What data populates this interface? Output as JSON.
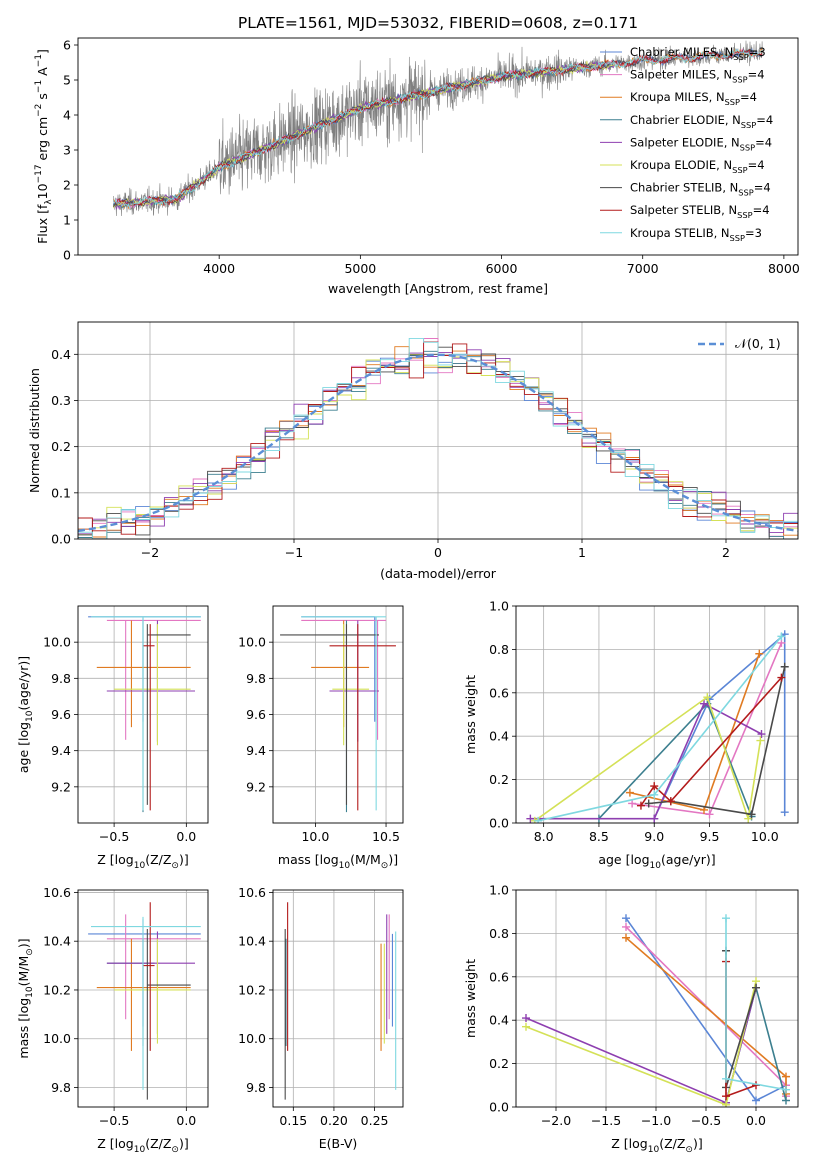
{
  "title": "PLATE=1561, MJD=53032, FIBERID=0608, z=0.171",
  "colors": {
    "Chabrier MILES": "#5b86d6",
    "Salpeter MILES": "#e377c2",
    "Kroupa MILES": "#e07b22",
    "Chabrier ELODIE": "#3c7f8f",
    "Salpeter ELODIE": "#8e3fb0",
    "Kroupa ELODIE": "#d4e157",
    "Chabrier STELIB": "#4a4a4a",
    "Salpeter STELIB": "#b31b1b",
    "Kroupa STELIB": "#7fd8e0",
    "data": "#808080",
    "gaussian": "#5b8fd6"
  },
  "chart_data": [
    {
      "type": "line",
      "panel": "spectrum",
      "xlabel": "wavelength [Angstrom, rest frame]",
      "ylabel": "Flux [f",
      "ylabel_sub": "λ",
      "ylabel_rest": "10",
      "ylabel_sup": "−17",
      "ylabel_tail": " erg cm",
      "ylabel_sup2": "−2",
      "ylabel_tail2": " s",
      "ylabel_sup3": "−1",
      "ylabel_tail3": " A",
      "ylabel_sup4": "−1",
      "ylabel_end": "]",
      "xlim": [
        3000,
        8100
      ],
      "ylim": [
        0,
        6.2
      ],
      "xticks": [
        4000,
        5000,
        6000,
        7000,
        8000
      ],
      "yticks": [
        0,
        1,
        2,
        3,
        4,
        5,
        6
      ],
      "data_range": [
        3250,
        7850
      ],
      "model_range": [
        3250,
        6800
      ],
      "legend": [
        {
          "name": "Chabrier MILES",
          "nssp": "3"
        },
        {
          "name": "Salpeter MILES",
          "nssp": "4"
        },
        {
          "name": "Kroupa MILES",
          "nssp": "4"
        },
        {
          "name": "Chabrier ELODIE",
          "nssp": "4"
        },
        {
          "name": "Salpeter ELODIE",
          "nssp": "4"
        },
        {
          "name": "Kroupa ELODIE",
          "nssp": "4"
        },
        {
          "name": "Chabrier STELIB",
          "nssp": "4"
        },
        {
          "name": "Salpeter STELIB",
          "nssp": "4"
        },
        {
          "name": "Kroupa STELIB",
          "nssp": "3"
        }
      ],
      "legend_prefix": "N",
      "legend_sub": "SSP"
    },
    {
      "type": "histogram",
      "panel": "residuals",
      "xlabel": "(data-model)/error",
      "ylabel": "Normed distribution",
      "xlim": [
        -2.5,
        2.5
      ],
      "ylim": [
        0,
        0.47
      ],
      "xticks": [
        -2,
        -1,
        0,
        1,
        2
      ],
      "yticks": [
        0.0,
        0.1,
        0.2,
        0.3,
        0.4
      ],
      "bin_width": 0.1,
      "legend": "𝒩(0, 1)"
    },
    {
      "type": "scatter",
      "panel": "age-vs-Z",
      "xlabel": "Z [log",
      "xlabel_sub": "10",
      "xlabel_tail": "(Z/Z",
      "xlabel_sub2": "⊙",
      "xlabel_end": ")]",
      "ylabel": "age  [log",
      "ylabel_sub": "10",
      "ylabel_tail": "(age/yr)]",
      "xlim": [
        -0.75,
        0.15
      ],
      "ylim": [
        9.0,
        10.2
      ],
      "xticks": [
        -0.5,
        0.0
      ],
      "yticks": [
        9.2,
        9.4,
        9.6,
        9.8,
        10.0
      ]
    },
    {
      "type": "scatter",
      "panel": "age-vs-mass",
      "xlabel": "mass [log",
      "xlabel_sub": "10",
      "xlabel_tail": "(M/M",
      "xlabel_sub2": "⊙",
      "xlabel_end": ")]",
      "xlim": [
        9.7,
        10.62
      ],
      "ylim": [
        9.0,
        10.2
      ],
      "xticks": [
        10.0,
        10.5
      ],
      "yticks": [
        9.2,
        9.4,
        9.6,
        9.8,
        10.0
      ]
    },
    {
      "type": "line",
      "panel": "weight-vs-age",
      "xlabel": "age  [log",
      "xlabel_sub": "10",
      "xlabel_tail": "(age/yr)]",
      "ylabel": "mass weight",
      "xlim": [
        7.75,
        10.3
      ],
      "ylim": [
        0,
        1.0
      ],
      "xticks": [
        8.0,
        8.5,
        9.0,
        9.5,
        10.0
      ],
      "yticks": [
        0.0,
        0.2,
        0.4,
        0.6,
        0.8,
        1.0
      ],
      "series": [
        {
          "name": "Chabrier MILES",
          "x": [
            9.0,
            9.5,
            10.18,
            10.18
          ],
          "y": [
            0.02,
            0.57,
            0.87,
            0.05
          ]
        },
        {
          "name": "Salpeter MILES",
          "x": [
            8.8,
            9.5,
            10.15
          ],
          "y": [
            0.09,
            0.04,
            0.83
          ]
        },
        {
          "name": "Kroupa MILES",
          "x": [
            8.78,
            9.45,
            9.95
          ],
          "y": [
            0.14,
            0.06,
            0.78
          ]
        },
        {
          "name": "Chabrier ELODIE",
          "x": [
            8.5,
            9.48,
            9.88
          ],
          "y": [
            0.02,
            0.55,
            0.03
          ]
        },
        {
          "name": "Salpeter ELODIE",
          "x": [
            7.88,
            9.0,
            9.45,
            9.97
          ],
          "y": [
            0.02,
            0.02,
            0.55,
            0.41
          ]
        },
        {
          "name": "Kroupa ELODIE",
          "x": [
            7.92,
            9.48,
            9.85,
            9.96
          ],
          "y": [
            0.01,
            0.58,
            0.02,
            0.38
          ]
        },
        {
          "name": "Chabrier STELIB",
          "x": [
            8.95,
            9.15,
            9.88,
            10.18
          ],
          "y": [
            0.09,
            0.1,
            0.04,
            0.72
          ]
        },
        {
          "name": "Salpeter STELIB",
          "x": [
            8.88,
            9.0,
            9.15,
            10.15
          ],
          "y": [
            0.08,
            0.17,
            0.1,
            0.67
          ]
        },
        {
          "name": "Kroupa STELIB",
          "x": [
            7.95,
            9.0,
            10.15
          ],
          "y": [
            0.01,
            0.13,
            0.86
          ]
        }
      ]
    },
    {
      "type": "scatter",
      "panel": "mass-vs-Z",
      "xlabel": "Z [log",
      "xlabel_sub": "10",
      "xlabel_tail": "(Z/Z",
      "xlabel_sub2": "⊙",
      "xlabel_end": ")]",
      "ylabel": "mass [log",
      "ylabel_sub": "10",
      "ylabel_tail": "(M/M",
      "ylabel_sub2": "⊙",
      "ylabel_end": ")]",
      "xlim": [
        -0.75,
        0.15
      ],
      "ylim": [
        9.72,
        10.61
      ],
      "xticks": [
        -0.5,
        0.0
      ],
      "yticks": [
        9.8,
        10.0,
        10.2,
        10.4,
        10.6
      ]
    },
    {
      "type": "scatter",
      "panel": "mass-vs-EBV",
      "xlabel": "E(B-V)",
      "xlim": [
        0.125,
        0.285
      ],
      "ylim": [
        9.72,
        10.61
      ],
      "xticks": [
        0.15,
        0.2,
        0.25
      ],
      "yticks": [
        9.8,
        10.0,
        10.2,
        10.4,
        10.6
      ]
    },
    {
      "type": "line",
      "panel": "weight-vs-Z",
      "xlabel": "Z [log",
      "xlabel_sub": "10",
      "xlabel_tail": "(Z/Z",
      "xlabel_sub2": "⊙",
      "xlabel_end": ")]",
      "ylabel": "mass weight",
      "xlim": [
        -2.4,
        0.42
      ],
      "ylim": [
        0,
        1.0
      ],
      "xticks": [
        -2.0,
        -1.5,
        -1.0,
        -0.5,
        0.0
      ],
      "yticks": [
        0.0,
        0.2,
        0.4,
        0.6,
        0.8,
        1.0
      ],
      "series": [
        {
          "name": "Chabrier MILES",
          "x": [
            -1.3,
            0.0,
            0.3
          ],
          "y": [
            0.87,
            0.03,
            0.1
          ]
        },
        {
          "name": "Salpeter MILES",
          "x": [
            -1.3,
            0.3,
            0.3
          ],
          "y": [
            0.83,
            0.1,
            0.05
          ]
        },
        {
          "name": "Kroupa MILES",
          "x": [
            -1.3,
            0.3,
            0.3
          ],
          "y": [
            0.78,
            0.14,
            0.06
          ]
        },
        {
          "name": "Chabrier ELODIE",
          "x": [
            -0.3,
            0.0,
            0.3
          ],
          "y": [
            0.02,
            0.55,
            0.03
          ]
        },
        {
          "name": "Salpeter ELODIE",
          "x": [
            -2.3,
            -0.3,
            0.0
          ],
          "y": [
            0.41,
            0.02,
            0.55
          ]
        },
        {
          "name": "Kroupa ELODIE",
          "x": [
            -2.3,
            -0.3,
            0.0
          ],
          "y": [
            0.37,
            0.01,
            0.58
          ]
        },
        {
          "name": "Chabrier STELIB",
          "x": [
            -0.3,
            -0.3,
            0.0
          ],
          "y": [
            0.72,
            0.09,
            0.55
          ]
        },
        {
          "name": "Salpeter STELIB",
          "x": [
            -0.3,
            -0.3,
            0.0
          ],
          "y": [
            0.67,
            0.05,
            0.1
          ]
        },
        {
          "name": "Kroupa STELIB",
          "x": [
            -0.3,
            -0.3,
            0.3
          ],
          "y": [
            0.87,
            0.13,
            0.08
          ]
        }
      ]
    }
  ],
  "errorbars": {
    "age_Z": [
      {
        "name": "Chabrier MILES",
        "x": -0.3,
        "xlo": -0.68,
        "xhi": 0.1,
        "y": 10.14,
        "ylo": 9.56,
        "yhi": 10.14
      },
      {
        "name": "Salpeter MILES",
        "x": -0.42,
        "xlo": -0.55,
        "xhi": 0.1,
        "y": 10.12,
        "ylo": 9.46,
        "yhi": 10.12
      },
      {
        "name": "Kroupa MILES",
        "x": -0.38,
        "xlo": -0.62,
        "xhi": 0.03,
        "y": 9.86,
        "ylo": 9.53,
        "yhi": 10.12
      },
      {
        "name": "Chabrier ELODIE",
        "x": -0.3,
        "xlo": -0.55,
        "xhi": -0.22,
        "y": 9.73,
        "ylo": 9.06,
        "yhi": 10.12
      },
      {
        "name": "Salpeter ELODIE",
        "x": -0.2,
        "xlo": -0.55,
        "xhi": 0.06,
        "y": 9.73,
        "ylo": 9.45,
        "yhi": 10.12
      },
      {
        "name": "Kroupa ELODIE",
        "x": -0.2,
        "xlo": -0.5,
        "xhi": 0.03,
        "y": 9.74,
        "ylo": 9.43,
        "yhi": 10.1
      },
      {
        "name": "Chabrier STELIB",
        "x": -0.27,
        "xlo": -0.27,
        "xhi": 0.03,
        "y": 10.04,
        "ylo": 9.1,
        "yhi": 10.1
      },
      {
        "name": "Salpeter STELIB",
        "x": -0.25,
        "xlo": -0.3,
        "xhi": -0.22,
        "y": 9.98,
        "ylo": 9.07,
        "yhi": 10.1
      },
      {
        "name": "Kroupa STELIB",
        "x": -0.3,
        "xlo": -0.66,
        "xhi": 0.1,
        "y": 10.14,
        "ylo": 9.07,
        "yhi": 10.14
      }
    ],
    "age_mass": [
      {
        "name": "Chabrier MILES",
        "x": 10.42,
        "xlo": 9.9,
        "xhi": 10.42,
        "y": 10.14,
        "ylo": 9.56,
        "yhi": 10.14
      },
      {
        "name": "Salpeter MILES",
        "x": 10.44,
        "xlo": 9.9,
        "xhi": 10.5,
        "y": 10.12,
        "ylo": 9.46,
        "yhi": 10.12
      },
      {
        "name": "Kroupa MILES",
        "x": 10.2,
        "xlo": 9.97,
        "xhi": 10.38,
        "y": 9.86,
        "ylo": 9.53,
        "yhi": 10.12
      },
      {
        "name": "Chabrier ELODIE",
        "x": 10.22,
        "xlo": 10.1,
        "xhi": 10.45,
        "y": 9.73,
        "ylo": 9.06,
        "yhi": 10.12
      },
      {
        "name": "Salpeter ELODIE",
        "x": 10.3,
        "xlo": 10.1,
        "xhi": 10.45,
        "y": 9.73,
        "ylo": 9.45,
        "yhi": 10.12
      },
      {
        "name": "Kroupa ELODIE",
        "x": 10.2,
        "xlo": 10.12,
        "xhi": 10.38,
        "y": 9.74,
        "ylo": 9.43,
        "yhi": 10.1
      },
      {
        "name": "Chabrier STELIB",
        "x": 10.22,
        "xlo": 9.75,
        "xhi": 10.45,
        "y": 10.04,
        "ylo": 9.1,
        "yhi": 10.1
      },
      {
        "name": "Salpeter STELIB",
        "x": 10.3,
        "xlo": 10.1,
        "xhi": 10.57,
        "y": 9.98,
        "ylo": 9.07,
        "yhi": 10.1
      },
      {
        "name": "Kroupa STELIB",
        "x": 10.43,
        "xlo": 9.9,
        "xhi": 10.5,
        "y": 10.14,
        "ylo": 9.07,
        "yhi": 10.14
      }
    ],
    "mass_Z": [
      {
        "name": "Chabrier MILES",
        "x": -0.3,
        "xlo": -0.68,
        "xhi": 0.1,
        "y": 10.43,
        "ylo": 10.05,
        "yhi": 10.49
      },
      {
        "name": "Salpeter MILES",
        "x": -0.42,
        "xlo": -0.55,
        "xhi": 0.1,
        "y": 10.41,
        "ylo": 10.08,
        "yhi": 10.51
      },
      {
        "name": "Kroupa MILES",
        "x": -0.38,
        "xlo": -0.62,
        "xhi": 0.03,
        "y": 10.21,
        "ylo": 9.95,
        "yhi": 10.41
      },
      {
        "name": "Chabrier ELODIE",
        "x": -0.3,
        "xlo": -0.55,
        "xhi": -0.22,
        "y": 10.31,
        "ylo": 9.97,
        "yhi": 10.41
      },
      {
        "name": "Salpeter ELODIE",
        "x": -0.2,
        "xlo": -0.55,
        "xhi": 0.06,
        "y": 10.31,
        "ylo": 10.02,
        "yhi": 10.44
      },
      {
        "name": "Kroupa ELODIE",
        "x": -0.2,
        "xlo": -0.5,
        "xhi": 0.03,
        "y": 10.2,
        "ylo": 9.98,
        "yhi": 10.41
      },
      {
        "name": "Chabrier STELIB",
        "x": -0.27,
        "xlo": -0.27,
        "xhi": 0.03,
        "y": 10.22,
        "ylo": 9.75,
        "yhi": 10.45
      },
      {
        "name": "Salpeter STELIB",
        "x": -0.25,
        "xlo": -0.3,
        "xhi": -0.22,
        "y": 10.3,
        "ylo": 9.95,
        "yhi": 10.56
      },
      {
        "name": "Kroupa STELIB",
        "x": -0.3,
        "xlo": -0.66,
        "xhi": 0.1,
        "y": 10.46,
        "ylo": 9.79,
        "yhi": 10.5
      }
    ],
    "mass_EBV": [
      {
        "name": "Chabrier MILES",
        "x": 0.272,
        "ylo": 10.05,
        "yhi": 10.43
      },
      {
        "name": "Salpeter MILES",
        "x": 0.268,
        "ylo": 10.08,
        "yhi": 10.51
      },
      {
        "name": "Kroupa MILES",
        "x": 0.258,
        "ylo": 9.95,
        "yhi": 10.39
      },
      {
        "name": "Chabrier ELODIE",
        "x": 0.141,
        "ylo": 9.97,
        "yhi": 10.41
      },
      {
        "name": "Salpeter ELODIE",
        "x": 0.265,
        "ylo": 10.02,
        "yhi": 10.51
      },
      {
        "name": "Kroupa ELODIE",
        "x": 0.262,
        "ylo": 9.98,
        "yhi": 10.39
      },
      {
        "name": "Chabrier STELIB",
        "x": 0.14,
        "ylo": 9.75,
        "yhi": 10.45
      },
      {
        "name": "Salpeter STELIB",
        "x": 0.143,
        "ylo": 9.95,
        "yhi": 10.56
      },
      {
        "name": "Kroupa STELIB",
        "x": 0.276,
        "ylo": 9.79,
        "yhi": 10.44
      }
    ]
  }
}
